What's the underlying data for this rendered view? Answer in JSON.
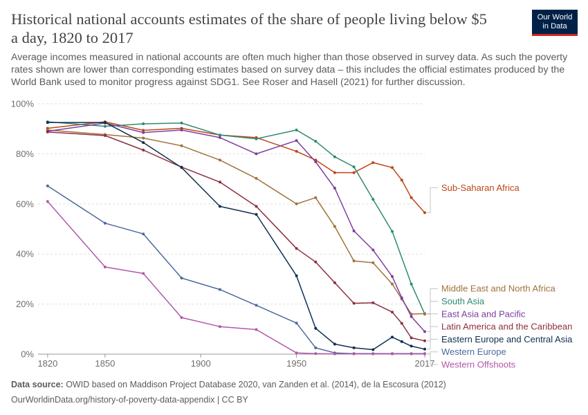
{
  "header": {
    "title": "Historical national accounts estimates of the share of people living below $5 a day, 1820 to 2017",
    "subtitle": "Average incomes measured in national accounts are often much higher than those observed in survey data. As such the poverty rates shown are lower than corresponding estimates based on survey data – this includes the official estimates produced by the World Bank used to monitor progress against SDG1. See Roser and Hasell (2021) for further discussion.",
    "logo_line1": "Our World",
    "logo_line2": "in Data"
  },
  "footer": {
    "source_label": "Data source:",
    "source_text": " OWID based on Maddison Project Database 2020, van Zanden et al. (2014), de la Escosura (2012)",
    "url_text": "OurWorldinData.org/history-of-poverty-data-appendix | CC BY"
  },
  "chart_data": {
    "type": "line",
    "xlim": [
      1815,
      2017
    ],
    "ylim": [
      0,
      100
    ],
    "x_ticks": [
      1820,
      1850,
      1900,
      1950,
      2017
    ],
    "x_tick_labels": [
      "1820",
      "1850",
      "1900",
      "1950",
      "2017"
    ],
    "y_ticks": [
      0,
      20,
      40,
      60,
      80,
      100
    ],
    "y_tick_labels": [
      "0%",
      "20%",
      "40%",
      "60%",
      "80%",
      "100%"
    ],
    "grid": "horizontal-dashed",
    "legend": "right, labels at line ends",
    "series": [
      {
        "name": "Sub-Saharan Africa",
        "color": "#be4516",
        "points": [
          [
            1820,
            90.2
          ],
          [
            1850,
            92.8
          ],
          [
            1870,
            89.4
          ],
          [
            1890,
            90.2
          ],
          [
            1910,
            87.5
          ],
          [
            1929,
            86.5
          ],
          [
            1950,
            81
          ],
          [
            1960,
            77.5
          ],
          [
            1970,
            72.5
          ],
          [
            1980,
            72.5
          ],
          [
            1990,
            76.5
          ],
          [
            2000,
            74.5
          ],
          [
            2005,
            69.5
          ],
          [
            2010,
            62.5
          ],
          [
            2017,
            56.5
          ]
        ]
      },
      {
        "name": "South Asia",
        "color": "#2e8a72",
        "points": [
          [
            1820,
            92.8
          ],
          [
            1850,
            91
          ],
          [
            1870,
            92
          ],
          [
            1890,
            92.3
          ],
          [
            1910,
            87.5
          ],
          [
            1929,
            86
          ],
          [
            1950,
            89.5
          ],
          [
            1960,
            85
          ],
          [
            1970,
            78.8
          ],
          [
            1980,
            74.8
          ],
          [
            1990,
            61.8
          ],
          [
            2000,
            49
          ],
          [
            2010,
            28
          ],
          [
            2017,
            16
          ]
        ]
      },
      {
        "name": "Middle East and North Africa",
        "color": "#a0723a",
        "points": [
          [
            1820,
            89.5
          ],
          [
            1850,
            87.7
          ],
          [
            1870,
            86.3
          ],
          [
            1890,
            83.2
          ],
          [
            1910,
            77.5
          ],
          [
            1929,
            70.2
          ],
          [
            1950,
            60
          ],
          [
            1960,
            62.5
          ],
          [
            1970,
            51
          ],
          [
            1980,
            37.2
          ],
          [
            1990,
            36.5
          ],
          [
            2000,
            28
          ],
          [
            2005,
            22
          ],
          [
            2010,
            16
          ],
          [
            2017,
            16.2
          ]
        ]
      },
      {
        "name": "East Asia and Pacific",
        "color": "#7d3e9e",
        "points": [
          [
            1820,
            89
          ],
          [
            1850,
            92.3
          ],
          [
            1870,
            88.5
          ],
          [
            1890,
            89.5
          ],
          [
            1910,
            86.5
          ],
          [
            1929,
            80
          ],
          [
            1950,
            85.3
          ],
          [
            1960,
            76.8
          ],
          [
            1970,
            66.3
          ],
          [
            1980,
            49.2
          ],
          [
            1990,
            41.6
          ],
          [
            2000,
            31
          ],
          [
            2005,
            22.5
          ],
          [
            2010,
            15
          ],
          [
            2017,
            9
          ]
        ]
      },
      {
        "name": "Latin America and the Caribbean",
        "color": "#8d2f3f",
        "points": [
          [
            1820,
            88.7
          ],
          [
            1850,
            87.3
          ],
          [
            1870,
            81.5
          ],
          [
            1890,
            74.7
          ],
          [
            1910,
            68.7
          ],
          [
            1929,
            59
          ],
          [
            1950,
            42.2
          ],
          [
            1960,
            36.8
          ],
          [
            1970,
            28.5
          ],
          [
            1980,
            20.3
          ],
          [
            1990,
            20.5
          ],
          [
            2000,
            16.8
          ],
          [
            2005,
            12.3
          ],
          [
            2010,
            6.5
          ],
          [
            2017,
            5.3
          ]
        ]
      },
      {
        "name": "Eastern Europe and Central Asia",
        "color": "#0f2e50",
        "points": [
          [
            1820,
            92.5
          ],
          [
            1850,
            92.5
          ],
          [
            1870,
            84.5
          ],
          [
            1890,
            74.5
          ],
          [
            1910,
            59
          ],
          [
            1929,
            55.8
          ],
          [
            1950,
            31.3
          ],
          [
            1960,
            10.3
          ],
          [
            1970,
            4
          ],
          [
            1980,
            2.5
          ],
          [
            1990,
            1.8
          ],
          [
            2000,
            6.8
          ],
          [
            2005,
            5
          ],
          [
            2010,
            3.2
          ],
          [
            2017,
            2
          ]
        ]
      },
      {
        "name": "Western Europe",
        "color": "#4c6a9c",
        "points": [
          [
            1820,
            67.2
          ],
          [
            1850,
            52.3
          ],
          [
            1870,
            48
          ],
          [
            1890,
            30.4
          ],
          [
            1910,
            25.8
          ],
          [
            1929,
            19.5
          ],
          [
            1950,
            12.4
          ],
          [
            1960,
            2.5
          ],
          [
            1970,
            0.5
          ],
          [
            1980,
            0.2
          ],
          [
            1990,
            0.2
          ],
          [
            2000,
            0.2
          ],
          [
            2010,
            0.2
          ],
          [
            2017,
            0.2
          ]
        ]
      },
      {
        "name": "Western Offshoots",
        "color": "#b258a8",
        "points": [
          [
            1820,
            61
          ],
          [
            1850,
            34.8
          ],
          [
            1870,
            32.2
          ],
          [
            1890,
            14.6
          ],
          [
            1910,
            11
          ],
          [
            1929,
            9.8
          ],
          [
            1950,
            0.5
          ],
          [
            1960,
            0.2
          ],
          [
            1970,
            0.1
          ],
          [
            1980,
            0.1
          ],
          [
            1990,
            0.1
          ],
          [
            2000,
            0.1
          ],
          [
            2010,
            0.1
          ],
          [
            2017,
            0.1
          ]
        ]
      }
    ]
  }
}
